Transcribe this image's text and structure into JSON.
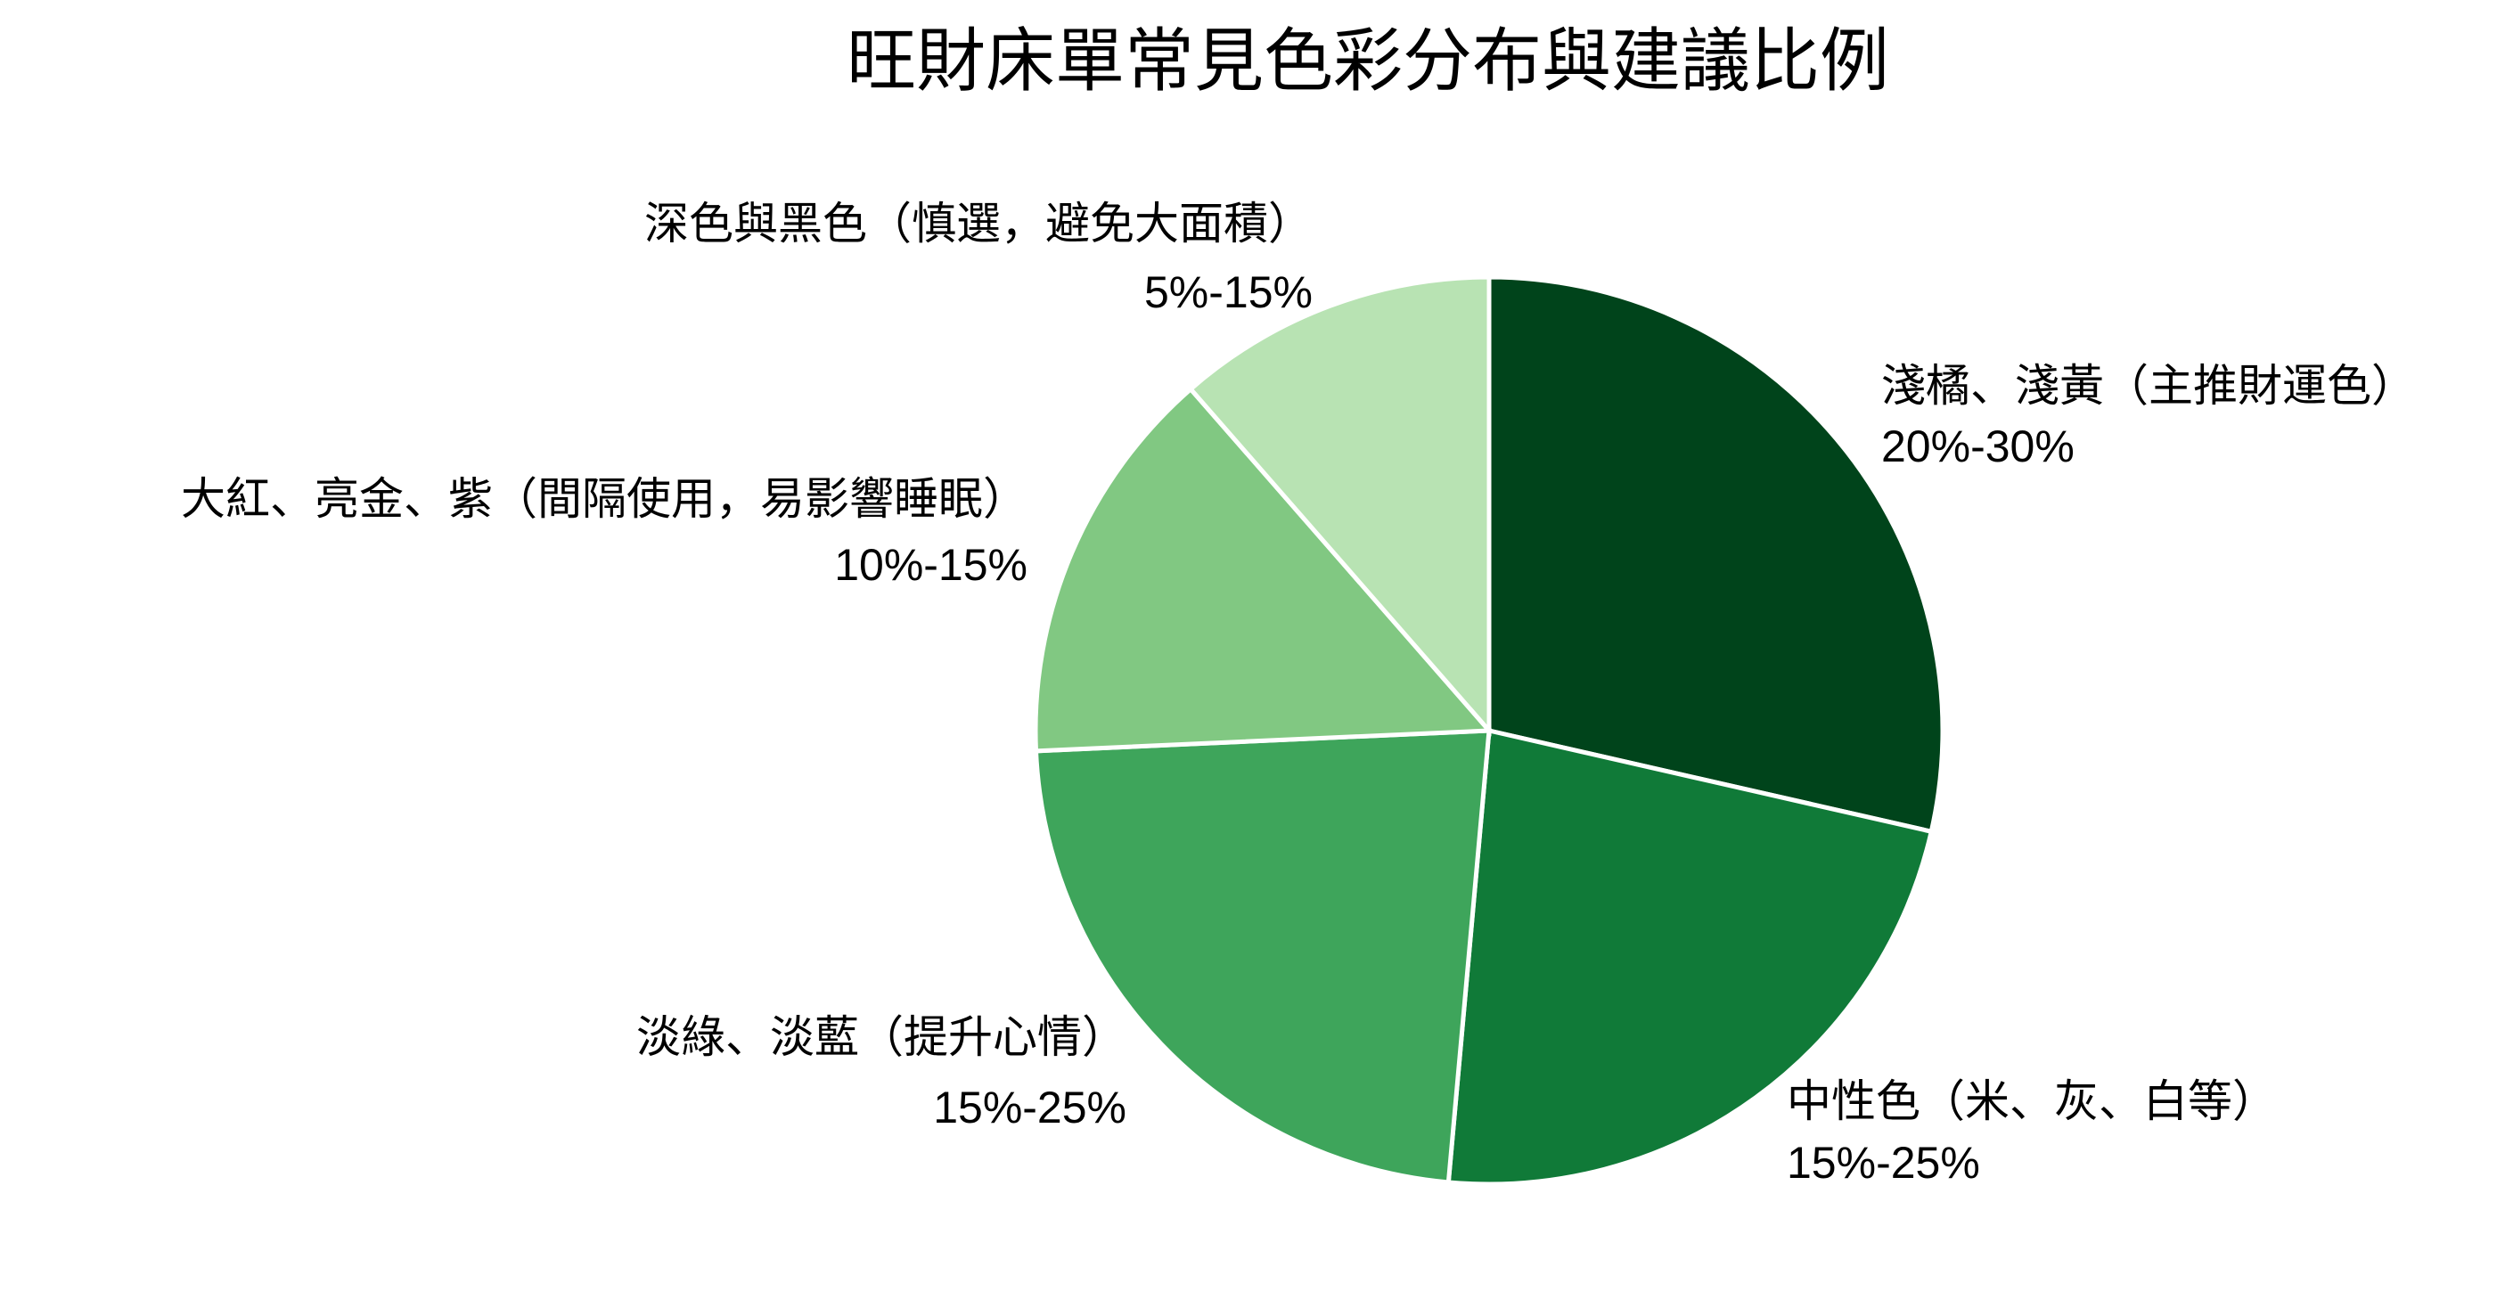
{
  "chart_data": {
    "type": "pie",
    "title": "旺財床單常見色彩分布與建議比例",
    "start_angle": "top",
    "direction": "clockwise",
    "slices": [
      {
        "label": "淺橘、淺黃（主推財運色）",
        "range_text": "20%-30%",
        "value": 25,
        "color": "#00441b"
      },
      {
        "label": "中性色（米、灰、白等）",
        "range_text": "15%-25%",
        "value": 20,
        "color": "#107a38"
      },
      {
        "label": "淡綠、淡藍（提升心情）",
        "range_text": "15%-25%",
        "value": 20,
        "color": "#3ea55b"
      },
      {
        "label": "大紅、亮金、紫（間隔使用，易影響睡眠）",
        "range_text": "10%-15%",
        "value": 12.5,
        "color": "#81c882"
      },
      {
        "label": "深色與黑色（慎選，避免大面積）",
        "range_text": "5%-15%",
        "value": 10,
        "color": "#b8e3b3"
      }
    ]
  }
}
